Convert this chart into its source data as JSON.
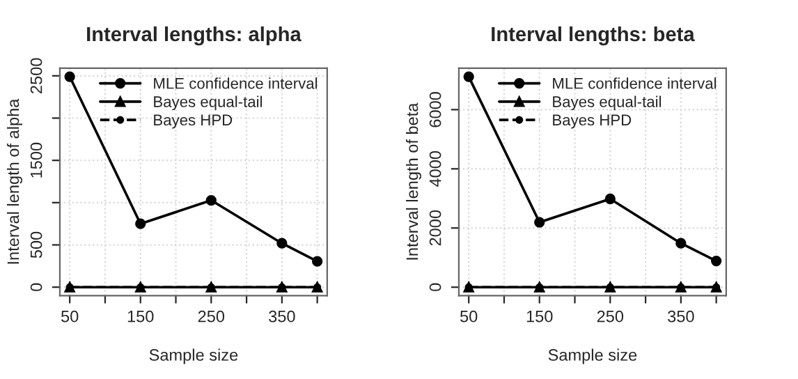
{
  "chart_data": [
    {
      "type": "line",
      "title": "Interval lengths: alpha",
      "xlabel": "Sample size",
      "ylabel": "Interval length of alpha",
      "x": [
        50,
        150,
        250,
        350,
        400
      ],
      "xlim": [
        36,
        414
      ],
      "xticks": [
        50,
        {
          "value": 100,
          "label": null
        },
        150,
        {
          "value": 200,
          "label": null
        },
        250,
        {
          "value": 300,
          "label": null
        },
        350,
        {
          "value": 400,
          "label": null
        }
      ],
      "ylim": [
        -100,
        2590
      ],
      "yticks": [
        0,
        500,
        {
          "value": 1000,
          "label": null
        },
        1500,
        {
          "value": 2000,
          "label": null
        },
        2500
      ],
      "grid": true,
      "legend": "top right",
      "series": [
        {
          "name": "MLE confidence interval",
          "color": "#000000",
          "marker": "circle",
          "line_style": "solid",
          "values": [
            2490,
            750,
            1027,
            519,
            305
          ]
        },
        {
          "name": "Bayes equal-tail",
          "color": "#000000",
          "marker": "triangle",
          "line_style": "solid",
          "values": [
            0,
            0,
            0,
            0,
            0
          ]
        },
        {
          "name": "Bayes HPD",
          "color": "#000000",
          "marker": "circle",
          "line_style": "dashed",
          "values": [
            0,
            0,
            0,
            0,
            0
          ]
        }
      ]
    },
    {
      "type": "line",
      "title": "Interval lengths: beta",
      "xlabel": "Sample size",
      "ylabel": "Interval length of beta",
      "x": [
        50,
        150,
        250,
        350,
        400
      ],
      "xlim": [
        36,
        414
      ],
      "xticks": [
        50,
        {
          "value": 100,
          "label": null
        },
        150,
        {
          "value": 200,
          "label": null
        },
        250,
        {
          "value": 300,
          "label": null
        },
        350,
        {
          "value": 400,
          "label": null
        }
      ],
      "ylim": [
        -285,
        7400
      ],
      "yticks": [
        0,
        2000,
        4000,
        6000
      ],
      "grid": true,
      "legend": "top right",
      "series": [
        {
          "name": "MLE confidence interval",
          "color": "#000000",
          "marker": "circle",
          "line_style": "solid",
          "values": [
            7113,
            2194,
            2984,
            1484,
            887
          ]
        },
        {
          "name": "Bayes equal-tail",
          "color": "#000000",
          "marker": "triangle",
          "line_style": "solid",
          "values": [
            0,
            0,
            0,
            0,
            0
          ]
        },
        {
          "name": "Bayes HPD",
          "color": "#000000",
          "marker": "circle",
          "line_style": "dashed",
          "values": [
            0,
            0,
            0,
            0,
            0
          ]
        }
      ]
    }
  ]
}
